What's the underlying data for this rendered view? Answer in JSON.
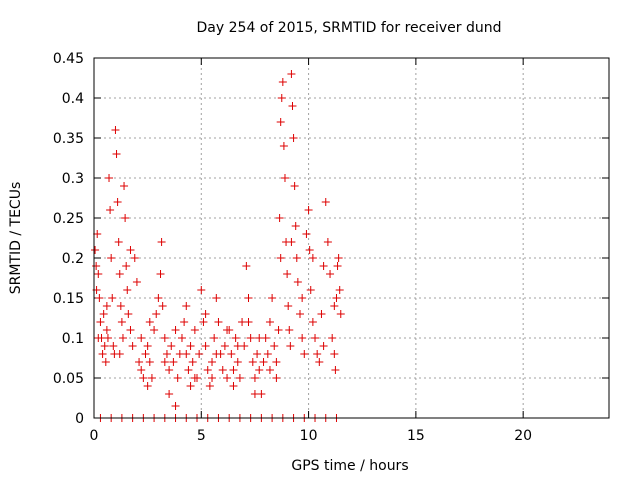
{
  "chart_data": {
    "type": "scatter",
    "title": "Day 254 of 2015, SRMTID for receiver dund",
    "xlabel": "GPS time / hours",
    "ylabel": "SRMTID / TECUs",
    "xlim": [
      0,
      24
    ],
    "ylim": [
      0,
      0.45
    ],
    "xticks": [
      0,
      5,
      10,
      15,
      20
    ],
    "xtick_labels": [
      "0",
      "5",
      "10",
      "15",
      "20"
    ],
    "yticks": [
      0,
      0.05,
      0.1,
      0.15,
      0.2,
      0.25,
      0.3,
      0.35,
      0.4,
      0.45
    ],
    "ytick_labels": [
      "0",
      "0.05",
      "0.1",
      "0.15",
      "0.2",
      "0.25",
      "0.3",
      "0.35",
      "0.4",
      "0.45"
    ],
    "grid": true,
    "marker": "+",
    "color": "#dd0000",
    "series": [
      {
        "name": "SRMTID",
        "points": [
          [
            0.05,
            0.21
          ],
          [
            0.1,
            0.19
          ],
          [
            0.12,
            0.16
          ],
          [
            0.15,
            0.23
          ],
          [
            0.2,
            0.18
          ],
          [
            0.25,
            0.15
          ],
          [
            0.3,
            0.12
          ],
          [
            0.35,
            0.1
          ],
          [
            0.4,
            0.08
          ],
          [
            0.45,
            0.13
          ],
          [
            0.5,
            0.09
          ],
          [
            0.55,
            0.07
          ],
          [
            0.6,
            0.11
          ],
          [
            0.65,
            0.1
          ],
          [
            0.7,
            0.3
          ],
          [
            0.75,
            0.26
          ],
          [
            0.8,
            0.2
          ],
          [
            0.85,
            0.15
          ],
          [
            0.9,
            0.09
          ],
          [
            0.95,
            0.08
          ],
          [
            1.0,
            0.36
          ],
          [
            1.05,
            0.33
          ],
          [
            1.1,
            0.27
          ],
          [
            1.15,
            0.22
          ],
          [
            1.2,
            0.18
          ],
          [
            1.25,
            0.14
          ],
          [
            1.3,
            0.12
          ],
          [
            1.35,
            0.1
          ],
          [
            1.4,
            0.29
          ],
          [
            1.45,
            0.25
          ],
          [
            1.5,
            0.19
          ],
          [
            1.55,
            0.16
          ],
          [
            1.6,
            0.13
          ],
          [
            1.7,
            0.11
          ],
          [
            1.8,
            0.09
          ],
          [
            1.9,
            0.2
          ],
          [
            2.0,
            0.17
          ],
          [
            2.1,
            0.07
          ],
          [
            2.2,
            0.06
          ],
          [
            2.3,
            0.05
          ],
          [
            2.4,
            0.08
          ],
          [
            2.5,
            0.09
          ],
          [
            2.6,
            0.07
          ],
          [
            2.7,
            0.05
          ],
          [
            2.8,
            0.11
          ],
          [
            2.9,
            0.13
          ],
          [
            3.0,
            0.15
          ],
          [
            3.1,
            0.18
          ],
          [
            3.15,
            0.22
          ],
          [
            3.2,
            0.14
          ],
          [
            3.3,
            0.1
          ],
          [
            3.4,
            0.08
          ],
          [
            3.5,
            0.06
          ],
          [
            3.6,
            0.09
          ],
          [
            3.7,
            0.07
          ],
          [
            3.8,
            0.015
          ],
          [
            3.9,
            0.05
          ],
          [
            4.0,
            0.08
          ],
          [
            4.1,
            0.1
          ],
          [
            4.2,
            0.12
          ],
          [
            4.3,
            0.08
          ],
          [
            4.4,
            0.06
          ],
          [
            4.5,
            0.09
          ],
          [
            4.6,
            0.07
          ],
          [
            4.7,
            0.11
          ],
          [
            4.8,
            0.05
          ],
          [
            4.9,
            0.08
          ],
          [
            5.0,
            0.16
          ],
          [
            5.1,
            0.12
          ],
          [
            5.2,
            0.09
          ],
          [
            5.3,
            0.06
          ],
          [
            5.4,
            0.04
          ],
          [
            5.5,
            0.07
          ],
          [
            5.6,
            0.1
          ],
          [
            5.7,
            0.15
          ],
          [
            5.8,
            0.12
          ],
          [
            5.9,
            0.08
          ],
          [
            6.0,
            0.06
          ],
          [
            6.1,
            0.09
          ],
          [
            6.2,
            0.05
          ],
          [
            6.3,
            0.11
          ],
          [
            6.4,
            0.08
          ],
          [
            6.5,
            0.06
          ],
          [
            6.6,
            0.1
          ],
          [
            6.7,
            0.07
          ],
          [
            6.8,
            0.05
          ],
          [
            6.9,
            0.12
          ],
          [
            7.0,
            0.09
          ],
          [
            7.1,
            0.19
          ],
          [
            7.2,
            0.15
          ],
          [
            7.3,
            0.1
          ],
          [
            7.4,
            0.07
          ],
          [
            7.5,
            0.05
          ],
          [
            7.6,
            0.08
          ],
          [
            7.7,
            0.06
          ],
          [
            7.8,
            0.03
          ],
          [
            7.9,
            0.07
          ],
          [
            8.0,
            0.1
          ],
          [
            8.1,
            0.08
          ],
          [
            8.2,
            0.12
          ],
          [
            8.3,
            0.15
          ],
          [
            8.4,
            0.09
          ],
          [
            8.5,
            0.07
          ],
          [
            8.6,
            0.11
          ],
          [
            8.65,
            0.25
          ],
          [
            8.7,
            0.37
          ],
          [
            8.75,
            0.4
          ],
          [
            8.8,
            0.42
          ],
          [
            8.85,
            0.34
          ],
          [
            8.9,
            0.3
          ],
          [
            8.95,
            0.22
          ],
          [
            9.0,
            0.18
          ],
          [
            9.05,
            0.14
          ],
          [
            9.1,
            0.11
          ],
          [
            9.15,
            0.09
          ],
          [
            9.2,
            0.43
          ],
          [
            9.25,
            0.39
          ],
          [
            9.3,
            0.35
          ],
          [
            9.35,
            0.29
          ],
          [
            9.4,
            0.24
          ],
          [
            9.45,
            0.2
          ],
          [
            9.5,
            0.17
          ],
          [
            9.6,
            0.13
          ],
          [
            9.7,
            0.1
          ],
          [
            9.8,
            0.08
          ],
          [
            9.9,
            0.23
          ],
          [
            10.0,
            0.26
          ],
          [
            10.05,
            0.21
          ],
          [
            10.1,
            0.16
          ],
          [
            10.2,
            0.12
          ],
          [
            10.3,
            0.1
          ],
          [
            10.4,
            0.08
          ],
          [
            10.5,
            0.07
          ],
          [
            10.6,
            0.13
          ],
          [
            10.7,
            0.19
          ],
          [
            10.8,
            0.27
          ],
          [
            10.9,
            0.22
          ],
          [
            11.0,
            0.18
          ],
          [
            11.1,
            0.1
          ],
          [
            11.2,
            0.08
          ],
          [
            11.25,
            0.06
          ],
          [
            11.3,
            0.15
          ],
          [
            11.35,
            0.19
          ],
          [
            11.4,
            0.2
          ],
          [
            11.45,
            0.16
          ],
          [
            11.5,
            0.13
          ],
          [
            0.2,
            0.1
          ],
          [
            0.6,
            0.14
          ],
          [
            1.2,
            0.08
          ],
          [
            1.7,
            0.21
          ],
          [
            2.2,
            0.1
          ],
          [
            2.6,
            0.12
          ],
          [
            3.3,
            0.07
          ],
          [
            3.8,
            0.11
          ],
          [
            4.3,
            0.14
          ],
          [
            4.7,
            0.05
          ],
          [
            5.2,
            0.13
          ],
          [
            5.7,
            0.08
          ],
          [
            6.2,
            0.11
          ],
          [
            6.7,
            0.09
          ],
          [
            7.2,
            0.12
          ],
          [
            7.7,
            0.1
          ],
          [
            8.2,
            0.06
          ],
          [
            8.7,
            0.2
          ],
          [
            9.2,
            0.22
          ],
          [
            9.7,
            0.15
          ],
          [
            10.2,
            0.2
          ],
          [
            10.7,
            0.09
          ],
          [
            11.2,
            0.14
          ],
          [
            2.5,
            0.04
          ],
          [
            3.5,
            0.03
          ],
          [
            4.5,
            0.04
          ],
          [
            5.5,
            0.05
          ],
          [
            6.5,
            0.04
          ],
          [
            7.5,
            0.03
          ],
          [
            8.5,
            0.05
          ],
          [
            0.3,
            0.0
          ],
          [
            0.8,
            0.0
          ],
          [
            1.3,
            0.0
          ],
          [
            1.8,
            0.0
          ],
          [
            2.3,
            0.0
          ],
          [
            2.8,
            0.0
          ],
          [
            3.3,
            0.0
          ],
          [
            3.8,
            0.0
          ],
          [
            4.3,
            0.0
          ],
          [
            4.8,
            0.0
          ],
          [
            5.3,
            0.0
          ],
          [
            5.8,
            0.0
          ],
          [
            6.3,
            0.0
          ],
          [
            6.8,
            0.0
          ],
          [
            7.3,
            0.0
          ],
          [
            7.8,
            0.0
          ],
          [
            8.3,
            0.0
          ],
          [
            8.8,
            0.0
          ],
          [
            9.3,
            0.0
          ],
          [
            9.8,
            0.0
          ],
          [
            10.3,
            0.0
          ],
          [
            10.8,
            0.0
          ],
          [
            11.3,
            0.0
          ]
        ]
      }
    ]
  }
}
